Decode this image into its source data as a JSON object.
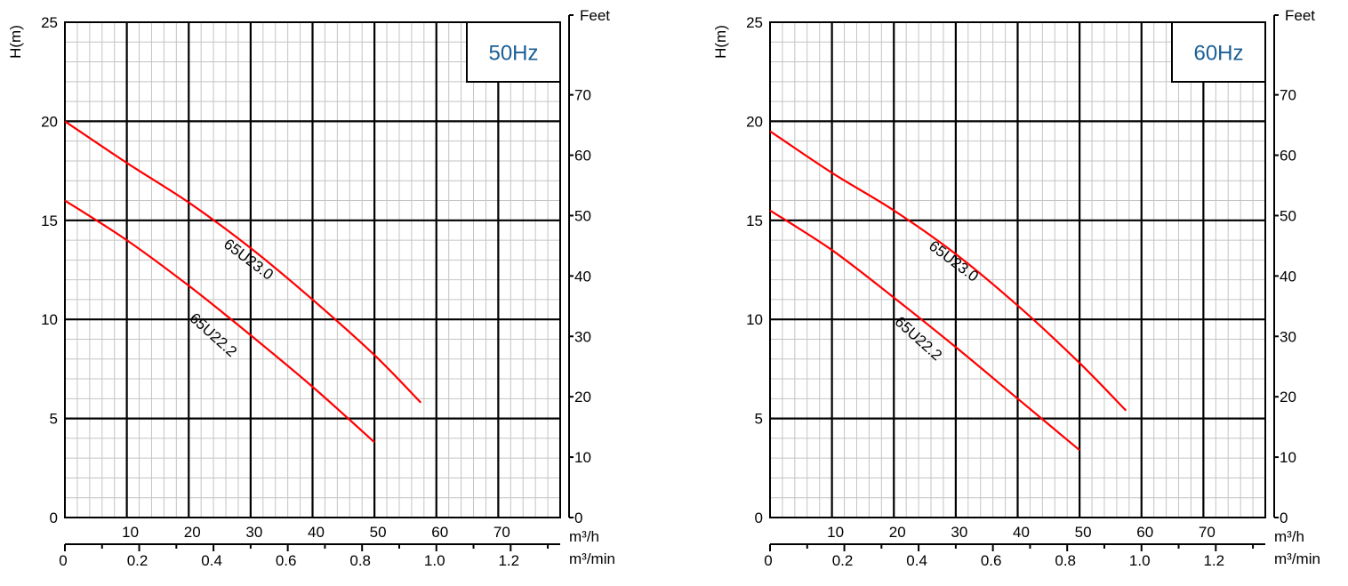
{
  "charts": [
    {
      "freq_label": "50Hz",
      "ylabel": "H(m)",
      "feet_label": "Feet",
      "x_unit_label": "m³/h",
      "x2_unit_label": "m³/min",
      "y_ticks": [
        "0",
        "5",
        "10",
        "15",
        "20",
        "25"
      ],
      "feet_ticks": [
        "0",
        "10",
        "20",
        "30",
        "40",
        "50",
        "60",
        "70"
      ],
      "x_ticks": [
        "10",
        "20",
        "30",
        "40",
        "50",
        "60",
        "70"
      ],
      "x2_ticks": [
        "0",
        "0.2",
        "0.4",
        "0.6",
        "0.8",
        "1.0",
        "1.2"
      ],
      "series_labels": [
        "65U23.0",
        "65U22.2"
      ]
    },
    {
      "freq_label": "60Hz",
      "ylabel": "H(m)",
      "feet_label": "Feet",
      "x_unit_label": "m³/h",
      "x2_unit_label": "m³/min",
      "y_ticks": [
        "0",
        "5",
        "10",
        "15",
        "20",
        "25"
      ],
      "feet_ticks": [
        "0",
        "10",
        "20",
        "30",
        "40",
        "50",
        "60",
        "70"
      ],
      "x_ticks": [
        "10",
        "20",
        "30",
        "40",
        "50",
        "60",
        "70"
      ],
      "x2_ticks": [
        "0",
        "0.2",
        "0.4",
        "0.6",
        "0.8",
        "1.0",
        "1.2"
      ],
      "series_labels": [
        "65U23.0",
        "65U22.2"
      ]
    }
  ],
  "chart_data": [
    {
      "type": "line",
      "annotation": "50Hz",
      "xlabel": "m³/h",
      "x2label": "m³/min",
      "ylabel": "H(m)",
      "y2label": "Feet",
      "xlim": [
        0,
        80
      ],
      "ylim": [
        0,
        25
      ],
      "y2lim": [
        0,
        82
      ],
      "grid": true,
      "line_color": "#ff0000",
      "series": [
        {
          "name": "65U23.0",
          "x": [
            0,
            10,
            20,
            30,
            40,
            50,
            57.5
          ],
          "y": [
            20.0,
            17.9,
            15.9,
            13.6,
            11.0,
            8.2,
            5.8
          ]
        },
        {
          "name": "65U22.2",
          "x": [
            0,
            10,
            20,
            30,
            40,
            50
          ],
          "y": [
            16.0,
            14.0,
            11.7,
            9.2,
            6.6,
            3.8
          ]
        }
      ]
    },
    {
      "type": "line",
      "annotation": "60Hz",
      "xlabel": "m³/h",
      "x2label": "m³/min",
      "ylabel": "H(m)",
      "y2label": "Feet",
      "xlim": [
        0,
        80
      ],
      "ylim": [
        0,
        25
      ],
      "y2lim": [
        0,
        82
      ],
      "grid": true,
      "line_color": "#ff0000",
      "series": [
        {
          "name": "65U23.0",
          "x": [
            0,
            10,
            20,
            30,
            40,
            50,
            57.5
          ],
          "y": [
            19.5,
            17.4,
            15.5,
            13.3,
            10.7,
            7.8,
            5.4
          ]
        },
        {
          "name": "65U22.2",
          "x": [
            0,
            10,
            20,
            30,
            40,
            50
          ],
          "y": [
            15.5,
            13.5,
            11.1,
            8.6,
            6.0,
            3.4
          ]
        }
      ]
    }
  ]
}
